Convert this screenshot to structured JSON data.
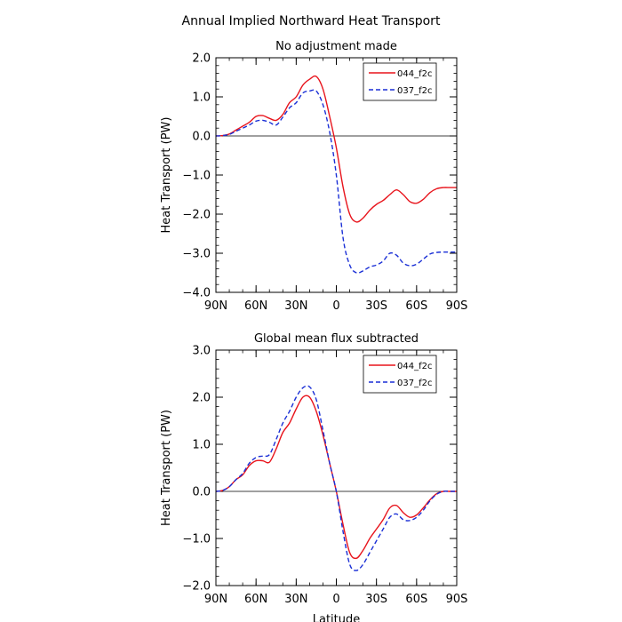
{
  "figure": {
    "title": "Annual Implied Northward Heat Transport"
  },
  "chart_data": [
    {
      "type": "line",
      "title": "No adjustment made",
      "xlabel": "",
      "ylabel": "Heat Transport (PW)",
      "xlim": [
        90,
        -90
      ],
      "ylim": [
        -4.0,
        2.0
      ],
      "x_ticks": [
        90,
        60,
        30,
        0,
        -30,
        -60,
        -90
      ],
      "x_tick_labels": [
        "90N",
        "60N",
        "30N",
        "0",
        "30S",
        "60S",
        "90S"
      ],
      "y_ticks": [
        2.0,
        1.0,
        0.0,
        -1.0,
        -2.0,
        -3.0,
        -4.0
      ],
      "y_tick_labels": [
        "2.0",
        "1.0",
        "0.0",
        "−1.0",
        "−2.0",
        "−3.0",
        "−4.0"
      ],
      "zero_line": true,
      "legend": "top-right",
      "series": [
        {
          "name": "044_f2c",
          "color": "#e8141c",
          "dash": "solid",
          "x": [
            90,
            85,
            80,
            75,
            70,
            65,
            60,
            55,
            50,
            45,
            40,
            35,
            30,
            25,
            20,
            15,
            10,
            5,
            0,
            -5,
            -10,
            -15,
            -20,
            -25,
            -30,
            -35,
            -40,
            -45,
            -50,
            -55,
            -60,
            -65,
            -70,
            -75,
            -80,
            -85,
            -90
          ],
          "y": [
            0.0,
            0.01,
            0.05,
            0.15,
            0.25,
            0.35,
            0.5,
            0.52,
            0.45,
            0.4,
            0.55,
            0.85,
            1.0,
            1.3,
            1.45,
            1.52,
            1.2,
            0.5,
            -0.3,
            -1.3,
            -2.0,
            -2.2,
            -2.1,
            -1.9,
            -1.75,
            -1.65,
            -1.5,
            -1.38,
            -1.5,
            -1.68,
            -1.72,
            -1.62,
            -1.45,
            -1.35,
            -1.32,
            -1.32,
            -1.32
          ]
        },
        {
          "name": "037_f2c",
          "color": "#1a2fd6",
          "dash": "dashed",
          "x": [
            90,
            85,
            80,
            75,
            70,
            65,
            60,
            55,
            50,
            45,
            40,
            35,
            30,
            25,
            20,
            15,
            10,
            5,
            0,
            -5,
            -10,
            -15,
            -20,
            -25,
            -30,
            -35,
            -40,
            -45,
            -50,
            -55,
            -60,
            -65,
            -70,
            -75,
            -80,
            -85,
            -90
          ],
          "y": [
            0.0,
            0.01,
            0.04,
            0.12,
            0.2,
            0.28,
            0.38,
            0.4,
            0.35,
            0.28,
            0.48,
            0.72,
            0.85,
            1.1,
            1.15,
            1.15,
            0.8,
            0.1,
            -1.0,
            -2.6,
            -3.3,
            -3.5,
            -3.45,
            -3.35,
            -3.3,
            -3.2,
            -3.0,
            -3.05,
            -3.25,
            -3.32,
            -3.28,
            -3.15,
            -3.02,
            -2.98,
            -2.97,
            -2.97,
            -2.97
          ]
        }
      ]
    },
    {
      "type": "line",
      "title": "Global mean flux subtracted",
      "xlabel": "Latitude",
      "ylabel": "Heat Transport (PW)",
      "xlim": [
        90,
        -90
      ],
      "ylim": [
        -2.0,
        3.0
      ],
      "x_ticks": [
        90,
        60,
        30,
        0,
        -30,
        -60,
        -90
      ],
      "x_tick_labels": [
        "90N",
        "60N",
        "30N",
        "0",
        "30S",
        "60S",
        "90S"
      ],
      "y_ticks": [
        3.0,
        2.0,
        1.0,
        0.0,
        -1.0,
        -2.0
      ],
      "y_tick_labels": [
        "3.0",
        "2.0",
        "1.0",
        "0.0",
        "−1.0",
        "−2.0"
      ],
      "zero_line": true,
      "legend": "top-right",
      "series": [
        {
          "name": "044_f2c",
          "color": "#e8141c",
          "dash": "solid",
          "x": [
            90,
            85,
            80,
            75,
            70,
            65,
            60,
            55,
            50,
            45,
            40,
            35,
            30,
            25,
            20,
            15,
            10,
            5,
            0,
            -5,
            -10,
            -15,
            -20,
            -25,
            -30,
            -35,
            -40,
            -45,
            -50,
            -55,
            -60,
            -65,
            -70,
            -75,
            -80,
            -85,
            -90
          ],
          "y": [
            0.0,
            0.02,
            0.1,
            0.25,
            0.35,
            0.55,
            0.65,
            0.65,
            0.62,
            0.9,
            1.25,
            1.45,
            1.75,
            2.0,
            2.0,
            1.7,
            1.2,
            0.6,
            0.0,
            -0.7,
            -1.3,
            -1.42,
            -1.25,
            -1.0,
            -0.8,
            -0.6,
            -0.35,
            -0.3,
            -0.45,
            -0.55,
            -0.5,
            -0.35,
            -0.18,
            -0.05,
            0.0,
            0.0,
            0.0
          ]
        },
        {
          "name": "037_f2c",
          "color": "#1a2fd6",
          "dash": "dashed",
          "x": [
            90,
            85,
            80,
            75,
            70,
            65,
            60,
            55,
            50,
            45,
            40,
            35,
            30,
            25,
            20,
            15,
            10,
            5,
            0,
            -5,
            -10,
            -15,
            -20,
            -25,
            -30,
            -35,
            -40,
            -45,
            -50,
            -55,
            -60,
            -65,
            -70,
            -75,
            -80,
            -85,
            -90
          ],
          "y": [
            0.0,
            0.02,
            0.1,
            0.25,
            0.38,
            0.6,
            0.72,
            0.75,
            0.78,
            1.1,
            1.45,
            1.7,
            2.0,
            2.2,
            2.22,
            1.95,
            1.3,
            0.6,
            0.0,
            -0.85,
            -1.55,
            -1.68,
            -1.55,
            -1.3,
            -1.05,
            -0.8,
            -0.55,
            -0.48,
            -0.6,
            -0.62,
            -0.55,
            -0.4,
            -0.2,
            -0.06,
            0.0,
            0.0,
            0.0
          ]
        }
      ]
    }
  ]
}
